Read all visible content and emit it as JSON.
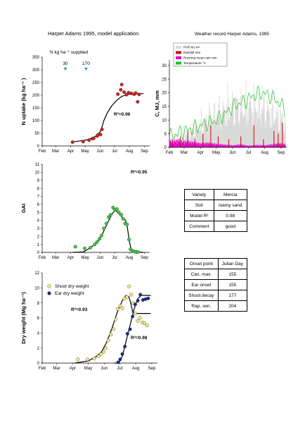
{
  "header": {
    "title": "Harper Adams 1995, model application"
  },
  "months": [
    "Feb",
    "Mar",
    "Apr",
    "May",
    "Jun",
    "Jul",
    "Aug",
    "Sep"
  ],
  "chart_data": [
    {
      "id": "n_uptake",
      "type": "scatter",
      "ylabel": "N uptake (kg ha⁻¹ )",
      "ylim": [
        0,
        350
      ],
      "yticks": [
        0,
        50,
        100,
        150,
        200,
        250,
        300,
        350
      ],
      "r2": "R²=0.96",
      "annotation": {
        "text": "N kg ha⁻¹  supplied",
        "markers": [
          {
            "label": "30",
            "x": 80
          },
          {
            "label": "170",
            "x": 123
          }
        ]
      },
      "series": [
        {
          "kind": "points",
          "color": "#d42020",
          "points": [
            [
              63,
              15
            ],
            [
              85,
              17
            ],
            [
              97,
              23
            ],
            [
              104,
              29
            ],
            [
              107,
              30
            ],
            [
              114,
              39
            ],
            [
              116,
              44
            ],
            [
              121,
              45
            ],
            [
              124,
              65
            ],
            [
              157,
              204
            ],
            [
              163,
              221
            ],
            [
              165,
              242
            ],
            [
              170,
              212
            ],
            [
              175,
              202
            ],
            [
              179,
              210
            ],
            [
              185,
              207
            ],
            [
              191,
              204
            ],
            [
              194,
              208
            ],
            [
              198,
              174
            ],
            [
              201,
              203
            ]
          ]
        },
        {
          "kind": "line",
          "color": "#000000",
          "points": [
            [
              63,
              16
            ],
            [
              80,
              20
            ],
            [
              95,
              25
            ],
            [
              105,
              32
            ],
            [
              112,
              40
            ],
            [
              120,
              55
            ],
            [
              124,
              75
            ],
            [
              128,
              100
            ],
            [
              135,
              130
            ],
            [
              145,
              160
            ],
            [
              155,
              180
            ],
            [
              165,
              195
            ],
            [
              175,
              202
            ],
            [
              185,
              205
            ],
            [
              195,
              206
            ],
            [
              210,
              206
            ]
          ]
        }
      ]
    },
    {
      "id": "weather",
      "type": "area",
      "title": "Weather record Harper Adams, 1995",
      "ylabel": "C, MJ, mm",
      "ylim": [
        0,
        32
      ],
      "yticks": [
        0,
        5,
        10,
        15,
        20,
        25,
        30
      ],
      "legend": {
        "position": "top-left",
        "items": [
          {
            "label": "PAR MJ m²",
            "color": "#d9d9d9"
          },
          {
            "label": "Rainfall mm",
            "color": "#cc1414"
          },
          {
            "label": "Running mean rain mm",
            "color": "#e000d0"
          },
          {
            "label": "Temperature °C",
            "color": "#22c322"
          }
        ]
      },
      "par_profile": [
        [
          0,
          2
        ],
        [
          10,
          3
        ],
        [
          25,
          5
        ],
        [
          40,
          8
        ],
        [
          55,
          11
        ],
        [
          70,
          14
        ],
        [
          85,
          17
        ],
        [
          100,
          19
        ],
        [
          115,
          21
        ],
        [
          130,
          22
        ],
        [
          145,
          22
        ],
        [
          160,
          22
        ],
        [
          175,
          21
        ],
        [
          190,
          19
        ],
        [
          205,
          17
        ],
        [
          220,
          13
        ]
      ],
      "temp_profile": [
        [
          0,
          4
        ],
        [
          15,
          5
        ],
        [
          30,
          6
        ],
        [
          45,
          7
        ],
        [
          60,
          8
        ],
        [
          75,
          9
        ],
        [
          90,
          10
        ],
        [
          105,
          12
        ],
        [
          115,
          14
        ],
        [
          130,
          16
        ],
        [
          145,
          17
        ],
        [
          160,
          19
        ],
        [
          175,
          20
        ],
        [
          190,
          19
        ],
        [
          205,
          17
        ],
        [
          220,
          14
        ]
      ],
      "rain_events": [
        [
          5,
          3
        ],
        [
          20,
          4
        ],
        [
          34,
          6
        ],
        [
          48,
          3
        ],
        [
          63,
          5
        ],
        [
          78,
          8
        ],
        [
          92,
          4
        ],
        [
          112,
          3
        ],
        [
          135,
          4
        ],
        [
          160,
          8
        ],
        [
          178,
          3
        ],
        [
          198,
          6
        ],
        [
          206,
          5
        ],
        [
          214,
          9
        ]
      ],
      "running_mean": [
        [
          0,
          2
        ],
        [
          15,
          2.2
        ],
        [
          30,
          1.8
        ],
        [
          45,
          1.6
        ],
        [
          60,
          1.2
        ],
        [
          75,
          1.4
        ],
        [
          90,
          1.0
        ],
        [
          105,
          0.8
        ],
        [
          120,
          0.6
        ],
        [
          135,
          0.9
        ],
        [
          150,
          0.5
        ],
        [
          165,
          0.7
        ],
        [
          180,
          0.6
        ],
        [
          195,
          0.9
        ],
        [
          210,
          1.2
        ],
        [
          220,
          1.0
        ]
      ]
    },
    {
      "id": "gai",
      "type": "scatter",
      "ylabel": "GAI",
      "ylim": [
        0,
        11
      ],
      "yticks": [
        0,
        1,
        2,
        3,
        4,
        5,
        6,
        7,
        8,
        9,
        10,
        11
      ],
      "r2": "R²=0.95",
      "series": [
        {
          "kind": "points",
          "color": "#3cc83c",
          "points": [
            [
              69,
              0.7
            ],
            [
              88,
              0.5
            ],
            [
              100,
              0.6
            ],
            [
              109,
              1.0
            ],
            [
              114,
              1.3
            ],
            [
              119,
              1.7
            ],
            [
              123,
              2.1
            ],
            [
              128,
              3.0
            ],
            [
              133,
              3.6
            ],
            [
              138,
              4.4
            ],
            [
              142,
              4.7
            ],
            [
              147,
              5.6
            ],
            [
              151,
              5.3
            ],
            [
              155,
              5.4
            ],
            [
              159,
              5.0
            ],
            [
              164,
              4.7
            ],
            [
              168,
              4.2
            ],
            [
              172,
              3.6
            ],
            [
              176,
              3.5
            ],
            [
              180,
              1.6
            ],
            [
              183,
              0.4
            ],
            [
              187,
              0.2
            ],
            [
              191,
              0.1
            ],
            [
              195,
              0.05
            ],
            [
              199,
              0.05
            ]
          ]
        },
        {
          "kind": "line",
          "color": "#000000",
          "points": [
            [
              63,
              0
            ],
            [
              85,
              0.05
            ],
            [
              95,
              0.4
            ],
            [
              105,
              0.8
            ],
            [
              115,
              1.3
            ],
            [
              125,
              2.3
            ],
            [
              135,
              3.6
            ],
            [
              145,
              4.8
            ],
            [
              152,
              5.3
            ],
            [
              160,
              4.8
            ],
            [
              167,
              4.3
            ],
            [
              173,
              4.0
            ],
            [
              177,
              3.0
            ],
            [
              181,
              1.3
            ],
            [
              185,
              0.3
            ],
            [
              190,
              0.05
            ],
            [
              210,
              0
            ]
          ]
        }
      ]
    },
    {
      "id": "dry_weight",
      "type": "scatter",
      "ylabel": "Dry weight (Mg ha⁻¹)",
      "ylim": [
        0,
        12
      ],
      "yticks": [
        0,
        2,
        4,
        6,
        8,
        10,
        12
      ],
      "legend": {
        "position": "top-left",
        "items": [
          {
            "label": "Shoot dry weight",
            "color": "#f0ec80"
          },
          {
            "label": "Ear dry weight",
            "color": "#1a2890"
          }
        ]
      },
      "r2_labels": [
        "R²=0.93",
        "R²=0.98"
      ],
      "series": [
        {
          "kind": "points",
          "color": "#f0ec80",
          "points": [
            [
              69,
              0.5
            ],
            [
              88,
              0.5
            ],
            [
              101,
              0.6
            ],
            [
              109,
              0.9
            ],
            [
              114,
              1.2
            ],
            [
              119,
              1.5
            ],
            [
              123,
              2.0
            ],
            [
              128,
              3.0
            ],
            [
              133,
              3.8
            ],
            [
              138,
              4.5
            ],
            [
              142,
              5.8
            ],
            [
              146,
              7.2
            ],
            [
              151,
              7.6
            ],
            [
              155,
              7.3
            ],
            [
              159,
              8.6
            ],
            [
              164,
              8.8
            ],
            [
              168,
              10.2
            ],
            [
              172,
              9.1
            ],
            [
              176,
              8.0
            ],
            [
              180,
              6.6
            ],
            [
              185,
              5.6
            ],
            [
              189,
              6.0
            ],
            [
              194,
              5.4
            ],
            [
              198,
              5.3
            ],
            [
              203,
              5.0
            ]
          ]
        },
        {
          "kind": "points",
          "color": "#1a2890",
          "points": [
            [
              147,
              0.1
            ],
            [
              151,
              0.5
            ],
            [
              155,
              1.2
            ],
            [
              160,
              2.2
            ],
            [
              165,
              3.9
            ],
            [
              170,
              4.5
            ],
            [
              175,
              6.2
            ],
            [
              180,
              7.8
            ],
            [
              185,
              8.3
            ],
            [
              190,
              9.1
            ],
            [
              195,
              8.4
            ],
            [
              200,
              8.5
            ],
            [
              205,
              8.6
            ]
          ]
        },
        {
          "kind": "line",
          "color": "#000000",
          "points": [
            [
              63,
              0
            ],
            [
              90,
              0.3
            ],
            [
              105,
              0.9
            ],
            [
              115,
              1.5
            ],
            [
              125,
              2.8
            ],
            [
              135,
              4.6
            ],
            [
              145,
              6.7
            ],
            [
              155,
              8.3
            ],
            [
              162,
              9.0
            ],
            [
              168,
              8.8
            ],
            [
              172,
              7.8
            ],
            [
              175,
              6.8
            ],
            [
              180,
              6.6
            ],
            [
              210,
              6.6
            ]
          ]
        },
        {
          "kind": "line",
          "color": "#000000",
          "points": [
            [
              140,
              0
            ],
            [
              148,
              0
            ],
            [
              155,
              0.9
            ],
            [
              162,
              2.8
            ],
            [
              170,
              5.0
            ],
            [
              177,
              7.0
            ],
            [
              185,
              8.6
            ],
            [
              192,
              9.0
            ],
            [
              210,
              9.0
            ]
          ]
        }
      ]
    }
  ],
  "info_table": {
    "rows": [
      {
        "label": "Variety",
        "value": "Mercia"
      },
      {
        "label": "Soil",
        "value": "loamy sand"
      },
      {
        "label": "Model R²",
        "value": "0.98"
      },
      {
        "label": "Comment",
        "value": "good"
      }
    ]
  },
  "onset_table": {
    "header": [
      "Onset point",
      "Julian Day"
    ],
    "rows": [
      [
        "Can. max.",
        "155"
      ],
      [
        "Ear onset",
        "155"
      ],
      [
        "Shoot decay",
        "177"
      ],
      [
        "Rap. sen.",
        "204"
      ]
    ]
  }
}
